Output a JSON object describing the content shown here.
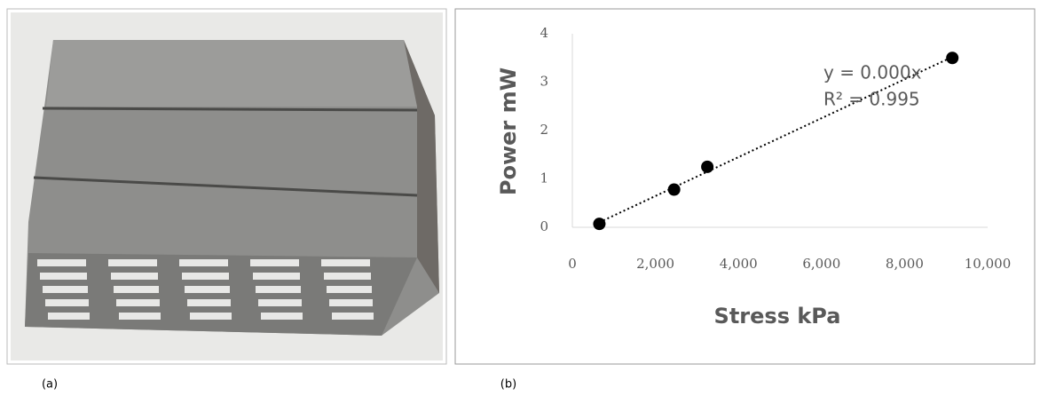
{
  "captions": [
    "(a)",
    "(b)"
  ],
  "chart_data": {
    "type": "scatter",
    "x_label": "Stress kPa",
    "y_label": "Power mW",
    "x": [
      650,
      2450,
      3250,
      9150
    ],
    "values": [
      0.07,
      0.78,
      1.25,
      3.5
    ],
    "color": "#000000",
    "trendline": true,
    "annotations": [
      "y = 0.000x",
      "R² = 0.995"
    ],
    "xlim": [
      0,
      10000
    ],
    "xticks": [
      0,
      {
        "value": 2000,
        "label": "2,000"
      },
      {
        "value": 4000,
        "label": "4,000"
      },
      {
        "value": 6000,
        "label": "6,000"
      },
      {
        "value": 8000,
        "label": "8,000"
      },
      {
        "value": 10000,
        "label": "10,000"
      }
    ],
    "ylim": [
      0,
      4
    ],
    "yticks": [
      0,
      1,
      2,
      3,
      4
    ]
  }
}
